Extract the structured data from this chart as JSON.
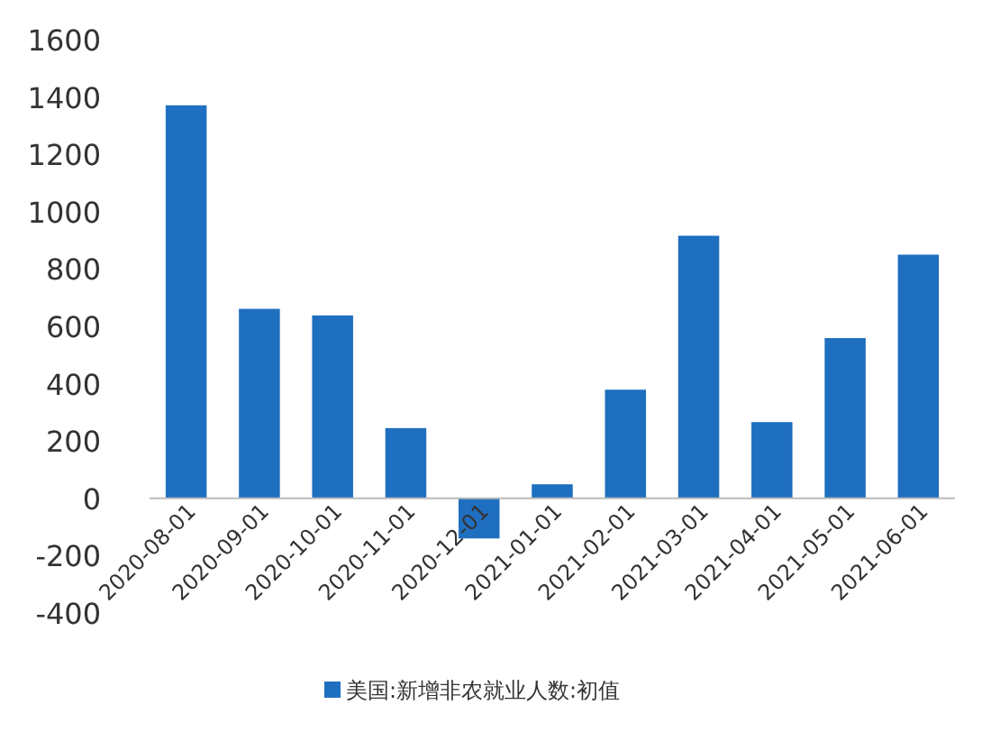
{
  "chart_data": {
    "type": "bar",
    "categories": [
      "2020-08-01",
      "2020-09-01",
      "2020-10-01",
      "2020-11-01",
      "2020-12-01",
      "2021-01-01",
      "2021-02-01",
      "2021-03-01",
      "2021-04-01",
      "2021-05-01",
      "2021-06-01"
    ],
    "series": [
      {
        "name": "美国:新增非农就业人数:初值",
        "color": "#1f6fc0",
        "values": [
          1371,
          661,
          638,
          245,
          -140,
          49,
          379,
          916,
          266,
          559,
          850
        ]
      }
    ],
    "ylim": [
      -400,
      1600
    ],
    "yticks": [
      -400,
      -200,
      0,
      200,
      400,
      600,
      800,
      1000,
      1200,
      1400,
      1600
    ],
    "grid": false,
    "legend": "bottom"
  }
}
